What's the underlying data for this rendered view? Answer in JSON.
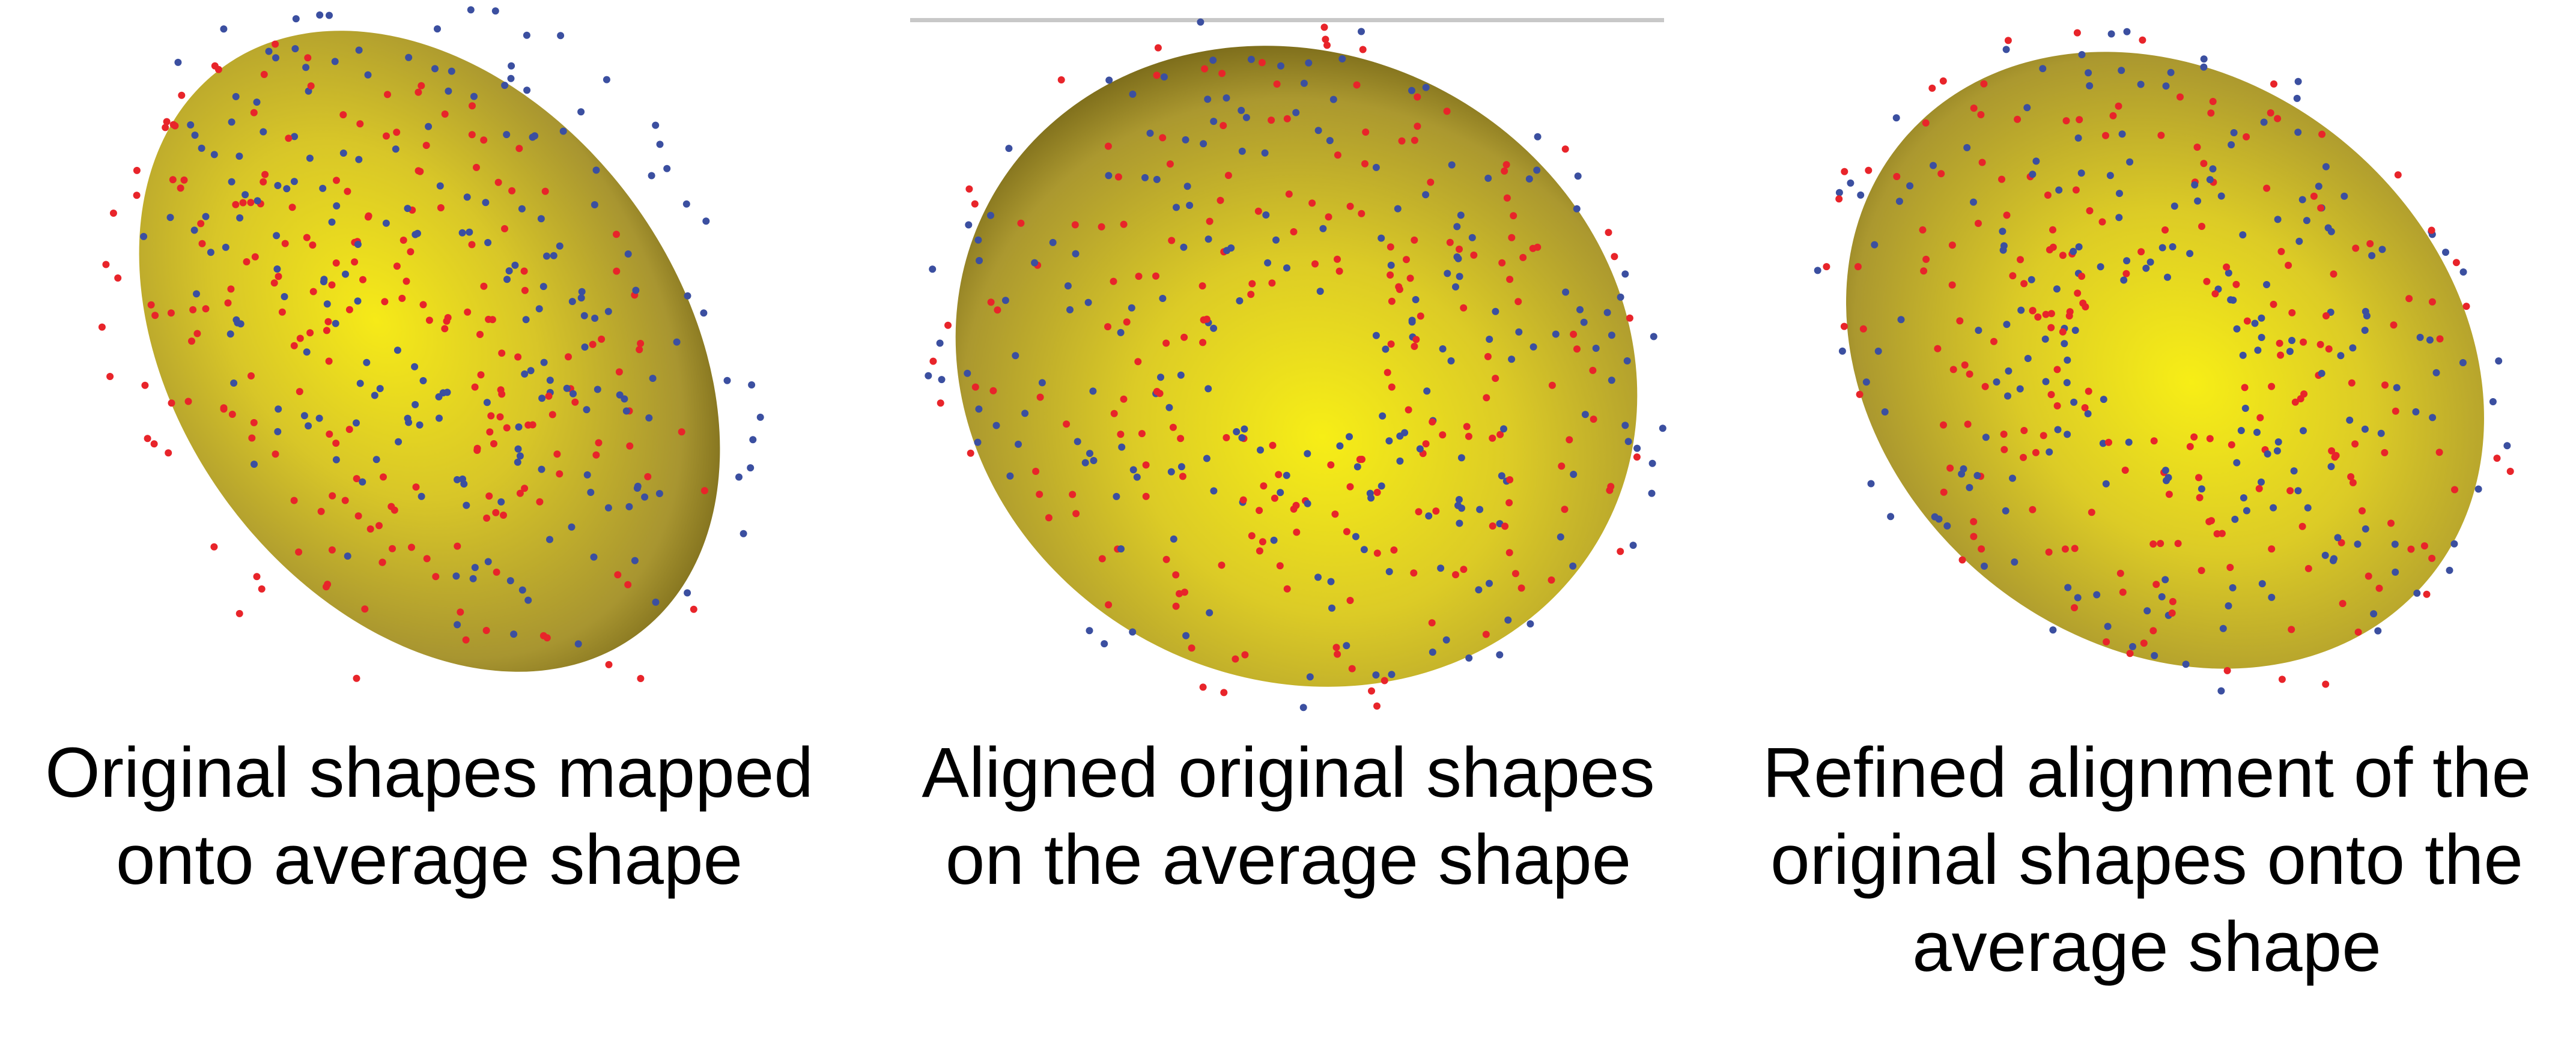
{
  "panels": [
    {
      "caption_lines": [
        "Original shapes mapped",
        "onto average shape"
      ]
    },
    {
      "caption_lines": [
        "Aligned original shapes",
        "on the average shape"
      ]
    },
    {
      "caption_lines": [
        "Refined alignment of the",
        "original shapes onto the",
        "average shape"
      ]
    }
  ],
  "colors": {
    "mesh_dark": "#7a6a1a",
    "mesh_mid": "#b8a02a",
    "mesh_light": "#f5e81a",
    "points_a": "#e8242a",
    "points_b": "#3b4fa0"
  }
}
